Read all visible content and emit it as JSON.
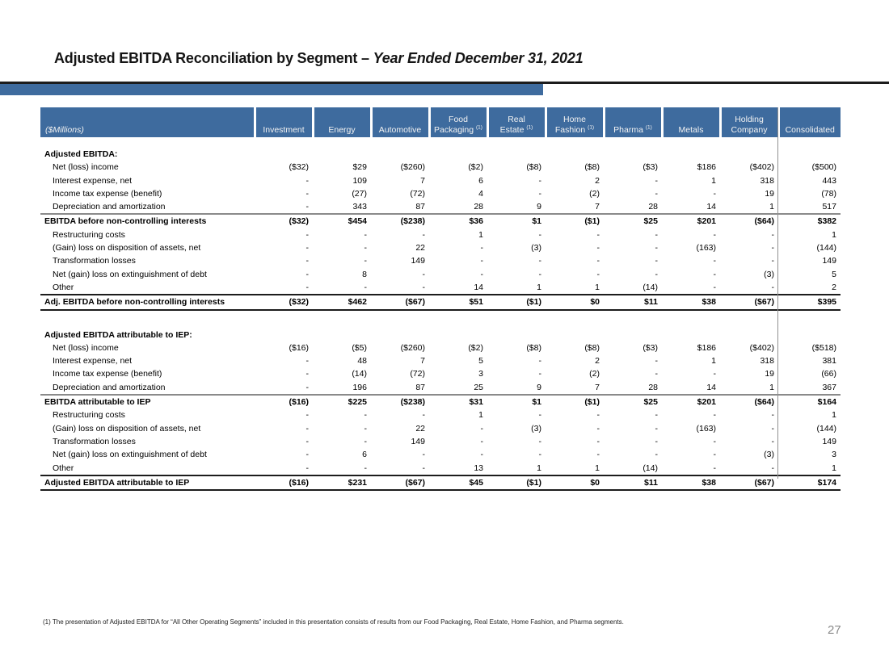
{
  "slide": {
    "title_main": "Adjusted EBITDA Reconciliation by Segment – ",
    "title_italic": "Year Ended December 31, 2021",
    "footnote": "(1) The presentation of Adjusted EBITDA for “All Other Operating Segments” included in this presentation consists of results from our Food Packaging, Real Estate, Home Fashion, and Pharma segments.",
    "page_number": "27"
  },
  "colors": {
    "header_blue": "#3E6B9E",
    "title_rule_black": "#1c1c1c",
    "divider_gray": "#909090"
  },
  "table": {
    "unit_label": "($Millions)",
    "columns": [
      {
        "lines": [
          "Investment"
        ],
        "sup": null
      },
      {
        "lines": [
          "Energy"
        ],
        "sup": null
      },
      {
        "lines": [
          "Automotive"
        ],
        "sup": null
      },
      {
        "lines": [
          "Food",
          "Packaging"
        ],
        "sup": "(1)"
      },
      {
        "lines": [
          "Real",
          "Estate"
        ],
        "sup": "(1)"
      },
      {
        "lines": [
          "Home",
          "Fashion"
        ],
        "sup": "(1)"
      },
      {
        "lines": [
          "Pharma"
        ],
        "sup": "(1)"
      },
      {
        "lines": [
          "Metals"
        ],
        "sup": null
      },
      {
        "lines": [
          "Holding",
          "Company"
        ],
        "sup": null
      },
      {
        "lines": [
          "Consolidated"
        ],
        "sup": null
      }
    ],
    "rows": [
      {
        "style": "gap"
      },
      {
        "style": "section",
        "label": "Adjusted EBITDA:",
        "values": []
      },
      {
        "style": "item",
        "label": "Net (loss) income",
        "values": [
          "($32)",
          "$29",
          "($260)",
          "($2)",
          "($8)",
          "($8)",
          "($3)",
          "$186",
          "($402)",
          "($500)"
        ]
      },
      {
        "style": "item",
        "label": "Interest expense, net",
        "values": [
          "-",
          "109",
          "7",
          "6",
          "-",
          "2",
          "-",
          "1",
          "318",
          "443"
        ]
      },
      {
        "style": "item",
        "label": "Income tax expense (benefit)",
        "values": [
          "-",
          "(27)",
          "(72)",
          "4",
          "-",
          "(2)",
          "-",
          "-",
          "19",
          "(78)"
        ]
      },
      {
        "style": "item",
        "label": "Depreciation and amortization",
        "values": [
          "-",
          "343",
          "87",
          "28",
          "9",
          "7",
          "28",
          "14",
          "1",
          "517"
        ]
      },
      {
        "style": "subtotal",
        "label": "EBITDA before non-controlling interests",
        "values": [
          "($32)",
          "$454",
          "($238)",
          "$36",
          "$1",
          "($1)",
          "$25",
          "$201",
          "($64)",
          "$382"
        ]
      },
      {
        "style": "item",
        "label": "Restructuring costs",
        "values": [
          "-",
          "-",
          "-",
          "1",
          "-",
          "-",
          "-",
          "-",
          "-",
          "1"
        ]
      },
      {
        "style": "item",
        "label": "(Gain) loss on disposition of assets, net",
        "values": [
          "-",
          "-",
          "22",
          "-",
          "(3)",
          "-",
          "-",
          "(163)",
          "-",
          "(144)"
        ]
      },
      {
        "style": "item",
        "label": "Transformation losses",
        "values": [
          "-",
          "-",
          "149",
          "-",
          "-",
          "-",
          "-",
          "-",
          "-",
          "149"
        ]
      },
      {
        "style": "item",
        "label": "Net (gain) loss on extinguishment of debt",
        "values": [
          "-",
          "8",
          "-",
          "-",
          "-",
          "-",
          "-",
          "-",
          "(3)",
          "5"
        ]
      },
      {
        "style": "item",
        "label": "Other",
        "values": [
          "-",
          "-",
          "-",
          "14",
          "1",
          "1",
          "(14)",
          "-",
          "-",
          "2"
        ]
      },
      {
        "style": "total",
        "label": "Adj. EBITDA before non-controlling interests",
        "values": [
          "($32)",
          "$462",
          "($67)",
          "$51",
          "($1)",
          "$0",
          "$11",
          "$38",
          "($67)",
          "$395"
        ]
      },
      {
        "style": "spacer"
      },
      {
        "style": "section",
        "label": "Adjusted EBITDA attributable to IEP:",
        "values": []
      },
      {
        "style": "item",
        "label": "Net (loss) income",
        "values": [
          "($16)",
          "($5)",
          "($260)",
          "($2)",
          "($8)",
          "($8)",
          "($3)",
          "$186",
          "($402)",
          "($518)"
        ]
      },
      {
        "style": "item",
        "label": "Interest expense, net",
        "values": [
          "-",
          "48",
          "7",
          "5",
          "-",
          "2",
          "-",
          "1",
          "318",
          "381"
        ]
      },
      {
        "style": "item",
        "label": "Income tax expense (benefit)",
        "values": [
          "-",
          "(14)",
          "(72)",
          "3",
          "-",
          "(2)",
          "-",
          "-",
          "19",
          "(66)"
        ]
      },
      {
        "style": "item",
        "label": "Depreciation and amortization",
        "values": [
          "-",
          "196",
          "87",
          "25",
          "9",
          "7",
          "28",
          "14",
          "1",
          "367"
        ]
      },
      {
        "style": "subtotal",
        "label": "EBITDA attributable to IEP",
        "values": [
          "($16)",
          "$225",
          "($238)",
          "$31",
          "$1",
          "($1)",
          "$25",
          "$201",
          "($64)",
          "$164"
        ]
      },
      {
        "style": "item",
        "label": "Restructuring costs",
        "values": [
          "-",
          "-",
          "-",
          "1",
          "-",
          "-",
          "-",
          "-",
          "-",
          "1"
        ]
      },
      {
        "style": "item",
        "label": "(Gain) loss on disposition of assets, net",
        "values": [
          "-",
          "-",
          "22",
          "-",
          "(3)",
          "-",
          "-",
          "(163)",
          "-",
          "(144)"
        ]
      },
      {
        "style": "item",
        "label": "Transformation losses",
        "values": [
          "-",
          "-",
          "149",
          "-",
          "-",
          "-",
          "-",
          "-",
          "-",
          "149"
        ]
      },
      {
        "style": "item",
        "label": "Net (gain) loss on extinguishment of debt",
        "values": [
          "-",
          "6",
          "-",
          "-",
          "-",
          "-",
          "-",
          "-",
          "(3)",
          "3"
        ]
      },
      {
        "style": "item",
        "label": "Other",
        "values": [
          "-",
          "-",
          "-",
          "13",
          "1",
          "1",
          "(14)",
          "-",
          "-",
          "1"
        ]
      },
      {
        "style": "total",
        "label": "Adjusted EBITDA attributable to IEP",
        "values": [
          "($16)",
          "$231",
          "($67)",
          "$45",
          "($1)",
          "$0",
          "$11",
          "$38",
          "($67)",
          "$174"
        ]
      }
    ]
  }
}
